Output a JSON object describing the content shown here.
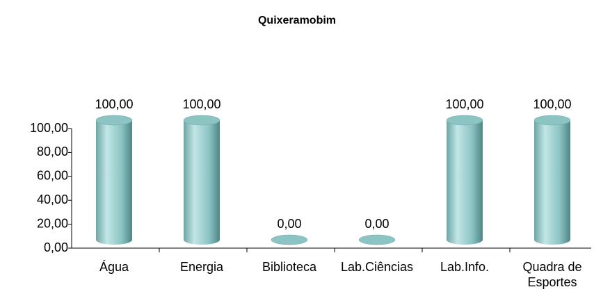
{
  "chart_data": {
    "type": "bar",
    "title": "Quixeramobim",
    "categories": [
      "Água",
      "Energia",
      "Biblioteca",
      "Lab.Ciências",
      "Lab.Info.",
      "Quadra de Esportes"
    ],
    "values": [
      100,
      100,
      0,
      0,
      100,
      100
    ],
    "value_labels": [
      "100,00",
      "100,00",
      "0,00",
      "0,00",
      "100,00",
      "100,00"
    ],
    "color": "#8cc4c4",
    "ylim": [
      0,
      100
    ],
    "yticks": [
      {
        "value": 0,
        "label": "0,00"
      },
      {
        "value": 20,
        "label": "20,00"
      },
      {
        "value": 40,
        "label": "40,00"
      },
      {
        "value": 60,
        "label": "60,00"
      },
      {
        "value": 80,
        "label": "80,00"
      },
      {
        "value": 100,
        "label": "100,00"
      }
    ]
  }
}
